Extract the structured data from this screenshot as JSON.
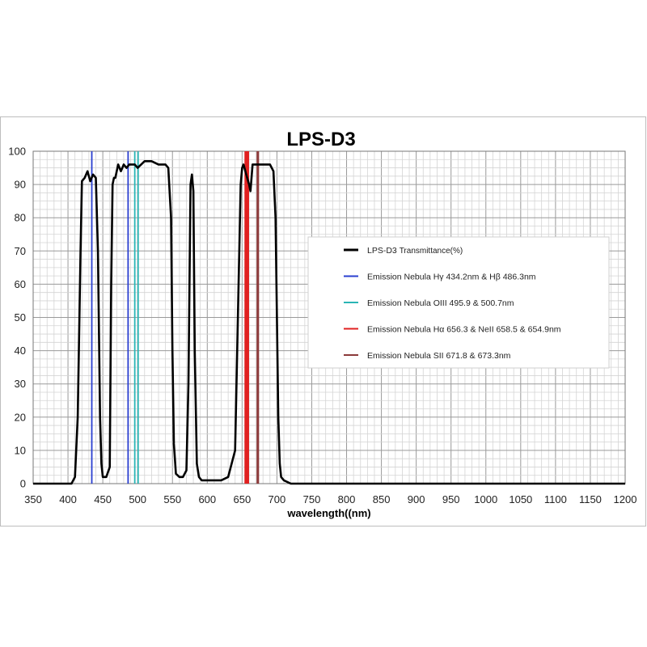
{
  "chart_data": {
    "type": "line",
    "title": "LPS-D3",
    "xlabel": "wavelength((nm)",
    "ylabel": "",
    "xlim": [
      350,
      1200
    ],
    "ylim": [
      0,
      100
    ],
    "x_ticks": [
      350,
      400,
      450,
      500,
      550,
      600,
      650,
      700,
      750,
      800,
      850,
      900,
      950,
      1000,
      1050,
      1100,
      1150,
      1200
    ],
    "y_ticks": [
      0,
      10,
      20,
      30,
      40,
      50,
      60,
      70,
      80,
      90,
      100
    ],
    "grid": true,
    "legend_position": "right",
    "series": [
      {
        "name": "LPS-D3",
        "name_suffix": "Transmittance(%)",
        "color": "#000000",
        "x": [
          350,
          380,
          405,
          410,
          414,
          418,
          420,
          424,
          428,
          432,
          436,
          440,
          443,
          446,
          448,
          450,
          452,
          455,
          460,
          462,
          464,
          466,
          468,
          472,
          476,
          480,
          484,
          488,
          492,
          496,
          500,
          510,
          520,
          530,
          540,
          544,
          548,
          550,
          552,
          555,
          560,
          565,
          570,
          573,
          576,
          578,
          580,
          582,
          585,
          588,
          592,
          600,
          610,
          620,
          630,
          640,
          645,
          648,
          650,
          652,
          656,
          660,
          662,
          665,
          670,
          675,
          680,
          685,
          690,
          695,
          698,
          700,
          702,
          704,
          706,
          710,
          720,
          750,
          800,
          900,
          1000,
          1100,
          1150,
          1200
        ],
        "y": [
          0,
          0,
          0,
          2,
          20,
          70,
          91,
          92,
          94,
          91,
          93,
          92,
          70,
          20,
          6,
          2,
          2,
          2,
          5,
          60,
          90,
          92,
          92,
          96,
          94,
          96,
          95,
          96,
          96,
          96,
          95,
          97,
          97,
          96,
          96,
          95,
          80,
          40,
          12,
          3,
          2,
          2,
          4,
          30,
          90,
          93,
          88,
          40,
          6,
          2,
          1,
          1,
          1,
          1,
          2,
          10,
          60,
          90,
          95,
          96,
          93,
          90,
          88,
          96,
          96,
          96,
          96,
          96,
          96,
          94,
          80,
          50,
          20,
          6,
          2,
          1,
          0,
          0,
          0,
          0,
          0,
          0,
          0,
          0
        ]
      }
    ],
    "emission_lines": [
      {
        "name": "Emission Nebula  Hγ 434.2nm  &  Hβ 486.3nm",
        "color": "#2a3fd0",
        "wavelengths": [
          434.2,
          486.3
        ]
      },
      {
        "name": "Emission Nebula  OIII  495.9 & 500.7nm",
        "color": "#2ab5b5",
        "wavelengths": [
          495.9,
          500.7
        ]
      },
      {
        "name": "Emission Nebula  Hα 656.3 & NeII  658.5 & 654.9nm",
        "color": "#e02020",
        "wavelengths": [
          656.3,
          658.5,
          654.9
        ]
      },
      {
        "name": "Emission Nebula  SII 671.8 & 673.3nm",
        "color": "#8b3a3a",
        "wavelengths": [
          671.8,
          673.3
        ]
      }
    ]
  }
}
